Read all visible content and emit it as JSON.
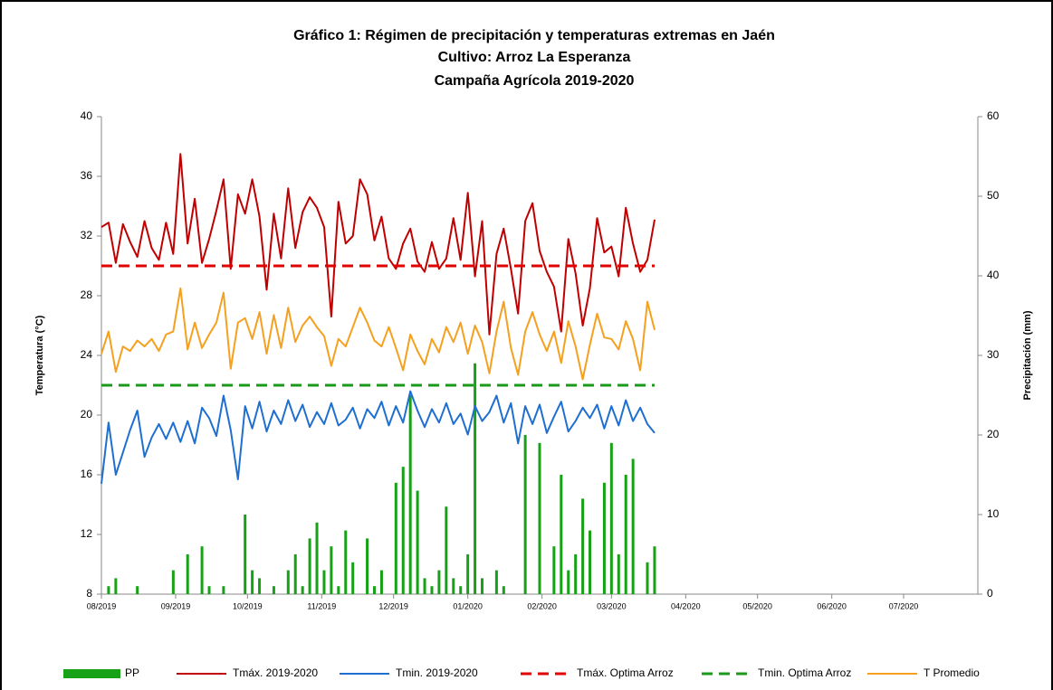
{
  "chart_data": {
    "type": "line",
    "title": "Gráfico 1:  Régimen de precipitación y temperaturas extremas en Jaén",
    "subtitle": "Cultivo: Arroz La Esperanza",
    "subtitle2": "Campaña Agrícola 2019-2020",
    "ylabel": "Temperatura (°C)",
    "y2label": "Precipitación (mm)",
    "xlim": [
      0,
      366
    ],
    "xticks": [
      {
        "value": 0,
        "label": "08/2019"
      },
      {
        "value": 31,
        "label": "09/2019"
      },
      {
        "value": 61,
        "label": "10/2019"
      },
      {
        "value": 92,
        "label": "11/2019"
      },
      {
        "value": 122,
        "label": "12/2019"
      },
      {
        "value": 153,
        "label": "01/2020"
      },
      {
        "value": 184,
        "label": "02/2020"
      },
      {
        "value": 213,
        "label": "03/2020"
      },
      {
        "value": 244,
        "label": "04/2020"
      },
      {
        "value": 274,
        "label": "05/2020"
      },
      {
        "value": 305,
        "label": "06/2020"
      },
      {
        "value": 335,
        "label": "07/2020"
      }
    ],
    "ylim": [
      8,
      40
    ],
    "yticks": [
      8,
      12,
      16,
      20,
      24,
      28,
      32,
      36,
      40
    ],
    "y2lim": [
      0,
      60
    ],
    "y2ticks": [
      0,
      10,
      20,
      30,
      40,
      50,
      60
    ],
    "legend": "bottom",
    "x": [
      0,
      3,
      6,
      9,
      12,
      15,
      18,
      21,
      24,
      27,
      30,
      33,
      36,
      39,
      42,
      45,
      48,
      51,
      54,
      57,
      60,
      63,
      66,
      69,
      72,
      75,
      78,
      81,
      84,
      87,
      90,
      93,
      96,
      99,
      102,
      105,
      108,
      111,
      114,
      117,
      120,
      123,
      126,
      129,
      132,
      135,
      138,
      141,
      144,
      147,
      150,
      153,
      156,
      159,
      162,
      165,
      168,
      171,
      174,
      177,
      180,
      183,
      186,
      189,
      192,
      195,
      198,
      201,
      204,
      207,
      210,
      213,
      216,
      219,
      222,
      225,
      228,
      231
    ],
    "series": [
      {
        "name": "PP",
        "type": "bar",
        "axis": "y2",
        "color": "#17a117",
        "values": [
          0,
          1,
          2,
          0,
          0,
          1,
          0,
          0,
          0,
          0,
          3,
          0,
          5,
          0,
          6,
          1,
          0,
          1,
          0,
          0,
          10,
          3,
          2,
          0,
          1,
          0,
          3,
          5,
          1,
          7,
          9,
          3,
          6,
          1,
          8,
          4,
          0,
          7,
          1,
          3,
          0,
          14,
          16,
          25,
          13,
          2,
          1,
          3,
          11,
          2,
          1,
          5,
          29,
          2,
          0,
          3,
          1,
          0,
          0,
          20,
          0,
          19,
          0,
          6,
          15,
          3,
          5,
          12,
          8,
          0,
          14,
          19,
          5,
          15,
          17,
          0,
          4,
          6
        ]
      },
      {
        "name": "Tmáx. 2019-2020",
        "color": "#c00000",
        "values": [
          32.6,
          32.9,
          30.2,
          32.8,
          31.6,
          30.6,
          33.0,
          31.2,
          30.4,
          32.9,
          30.8,
          37.5,
          31.5,
          34.5,
          30.2,
          31.8,
          33.7,
          35.8,
          29.8,
          34.8,
          33.5,
          35.8,
          33.3,
          28.4,
          33.5,
          30.5,
          35.2,
          31.2,
          33.6,
          34.6,
          33.9,
          32.6,
          26.6,
          34.3,
          31.5,
          32.0,
          35.8,
          34.8,
          31.7,
          33.3,
          30.5,
          29.8,
          31.5,
          32.5,
          30.3,
          29.6,
          31.6,
          29.8,
          30.5,
          33.2,
          30.4,
          34.9,
          29.3,
          33.0,
          25.4,
          30.8,
          32.5,
          29.8,
          26.8,
          33.0,
          34.2,
          31.0,
          29.6,
          28.6,
          25.6,
          31.8,
          29.5,
          26.0,
          28.5,
          33.2,
          30.9,
          31.3,
          29.3,
          33.9,
          31.5,
          29.6,
          30.4,
          33.1
        ]
      },
      {
        "name": "Tmin. 2019-2020",
        "color": "#1f6fd0",
        "values": [
          15.4,
          19.5,
          16.0,
          17.5,
          19.0,
          20.3,
          17.2,
          18.5,
          19.4,
          18.4,
          19.5,
          18.2,
          19.6,
          18.1,
          20.5,
          19.8,
          18.6,
          21.3,
          19.0,
          15.7,
          20.6,
          19.1,
          20.9,
          18.9,
          20.3,
          19.4,
          21.0,
          19.6,
          20.7,
          19.2,
          20.2,
          19.4,
          20.8,
          19.3,
          19.7,
          20.5,
          19.1,
          20.4,
          19.8,
          20.9,
          19.3,
          20.6,
          19.5,
          21.6,
          20.3,
          19.2,
          20.4,
          19.5,
          20.8,
          19.4,
          20.1,
          18.7,
          20.6,
          19.6,
          20.2,
          21.3,
          19.5,
          20.8,
          18.1,
          20.6,
          19.4,
          20.7,
          18.8,
          19.9,
          20.9,
          18.9,
          19.6,
          20.5,
          19.8,
          20.7,
          19.1,
          20.6,
          19.3,
          21.0,
          19.6,
          20.5,
          19.4,
          18.8
        ]
      },
      {
        "name": "Tmáx. Optima Arroz",
        "color": "#e00000",
        "dash": true,
        "x": [
          0,
          231
        ],
        "values": [
          30,
          30
        ]
      },
      {
        "name": "Tmin. Optima Arroz",
        "color": "#1a9a1a",
        "dash": true,
        "x": [
          0,
          231
        ],
        "values": [
          22,
          22
        ]
      },
      {
        "name": "T Promedio",
        "color": "#f5a01e",
        "values": [
          24.1,
          25.6,
          22.9,
          24.6,
          24.3,
          25.0,
          24.6,
          25.1,
          24.3,
          25.4,
          25.6,
          28.5,
          24.4,
          26.2,
          24.5,
          25.4,
          26.2,
          28.2,
          23.1,
          26.2,
          26.5,
          25.1,
          26.9,
          24.1,
          26.7,
          24.5,
          27.2,
          24.9,
          26.0,
          26.6,
          25.9,
          25.3,
          23.3,
          25.1,
          24.6,
          25.9,
          27.2,
          26.2,
          25.0,
          24.6,
          25.9,
          24.5,
          23.0,
          25.4,
          24.3,
          23.4,
          25.1,
          24.2,
          25.9,
          24.9,
          26.2,
          24.1,
          26.0,
          24.9,
          22.8,
          25.6,
          27.6,
          24.5,
          22.7,
          25.6,
          26.9,
          25.4,
          24.3,
          25.6,
          23.5,
          26.3,
          24.6,
          22.4,
          24.7,
          26.8,
          25.2,
          25.1,
          24.4,
          26.3,
          25.1,
          23.0,
          27.6,
          25.7
        ]
      }
    ]
  }
}
